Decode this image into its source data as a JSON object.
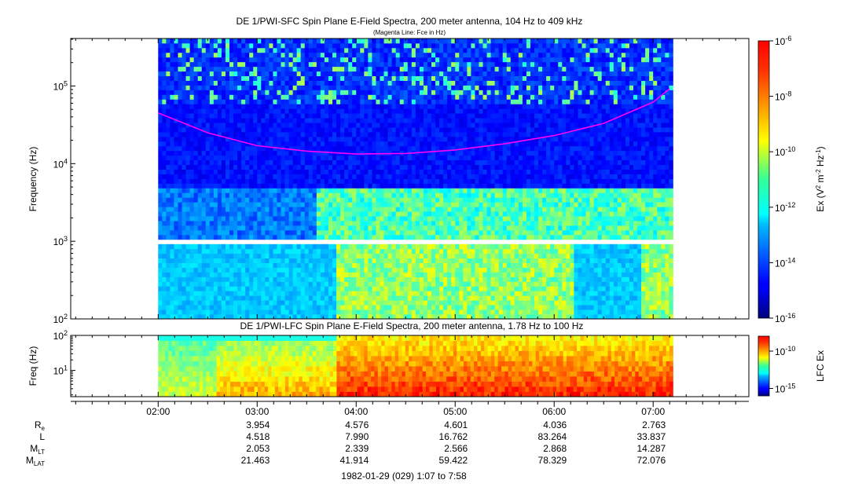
{
  "chart_data": [
    {
      "type": "heatmap",
      "title": "DE 1/PWI-SFC  Spin Plane E-Field Spectra, 200 meter antenna, 104 Hz to 409 kHz",
      "subtitle": "(Magenta Line: Fce in Hz)",
      "ylabel": "Frequency (Hz)",
      "y_scale": "log",
      "ylim": [
        100,
        409000
      ],
      "y_ticks": [
        {
          "value": 100,
          "mant": "10",
          "exp": "2"
        },
        {
          "value": 1000,
          "mant": "10",
          "exp": "3"
        },
        {
          "value": 10000,
          "mant": "10",
          "exp": "4"
        },
        {
          "value": 100000,
          "mant": "10",
          "exp": "5"
        }
      ],
      "data_gap_hz": [
        900,
        1050
      ],
      "data_time_range": [
        "02:00",
        "07:12"
      ],
      "colorbar": {
        "label_prefix": "Ex (V",
        "label_mid": " m",
        "label_end": " Hz",
        "label_close": ")",
        "sup1": "2",
        "sup2": "-2",
        "sup3": "-1",
        "scale": "log",
        "range": [
          1e-16,
          1e-06
        ],
        "ticks": [
          {
            "value": 1e-06,
            "mant": "10",
            "exp": "-6"
          },
          {
            "value": 1e-08,
            "mant": "10",
            "exp": "-8"
          },
          {
            "value": 1e-10,
            "mant": "10",
            "exp": "-10"
          },
          {
            "value": 1e-12,
            "mant": "10",
            "exp": "-12"
          },
          {
            "value": 1e-14,
            "mant": "10",
            "exp": "-14"
          },
          {
            "value": 1e-16,
            "mant": "10",
            "exp": "-16"
          }
        ]
      },
      "fce_line": {
        "color": "#ff00ff",
        "t": [
          "02:00",
          "02:30",
          "03:00",
          "03:30",
          "04:00",
          "04:30",
          "05:00",
          "05:30",
          "06:00",
          "06:30",
          "07:00",
          "07:10"
        ],
        "hz": [
          45000,
          25000,
          17000,
          14500,
          13300,
          13500,
          15000,
          18000,
          23000,
          33000,
          62000,
          92000
        ]
      }
    },
    {
      "type": "heatmap",
      "title": "DE 1/PWI-LFC  Spin Plane E-Field Spectra, 200 meter antenna, 1.78 Hz to 100 Hz",
      "ylabel": "Freq (Hz)",
      "y_scale": "log",
      "ylim": [
        1.78,
        100
      ],
      "y_ticks": [
        {
          "value": 10,
          "mant": "10",
          "exp": "1"
        },
        {
          "value": 100,
          "mant": "10",
          "exp": "2"
        }
      ],
      "data_time_range": [
        "02:00",
        "07:12"
      ],
      "colorbar": {
        "label": "LFC Ex",
        "scale": "log",
        "range": [
          1e-16,
          1e-08
        ],
        "ticks": [
          {
            "value": 1e-10,
            "mant": "10",
            "exp": "-10"
          },
          {
            "value": 1e-15,
            "mant": "10",
            "exp": "-15"
          }
        ]
      }
    }
  ],
  "time_axis": {
    "range": [
      "01:07",
      "07:58"
    ],
    "major_ticks": [
      "02:00",
      "03:00",
      "04:00",
      "05:00",
      "06:00",
      "07:00"
    ]
  },
  "ephemeris": {
    "rows": [
      {
        "label_main": "R",
        "label_sub": "e",
        "values": [
          "3.954",
          "4.576",
          "4.601",
          "4.036",
          "2.763"
        ]
      },
      {
        "label_main": "L",
        "label_sub": "",
        "values": [
          "4.518",
          "7.990",
          "16.762",
          "83.264",
          "33.837"
        ]
      },
      {
        "label_main": "M",
        "label_sub": "LT",
        "values": [
          "2.053",
          "2.339",
          "2.566",
          "2.868",
          "14.287"
        ]
      },
      {
        "label_main": "M",
        "label_sub": "LAT",
        "values": [
          "21.463",
          "41.914",
          "59.422",
          "78.329",
          "72.076"
        ]
      }
    ],
    "columns": [
      "03:00",
      "04:00",
      "05:00",
      "06:00",
      "07:00"
    ]
  },
  "footer": "1982-01-29 (029) 1:07 to 7:58"
}
